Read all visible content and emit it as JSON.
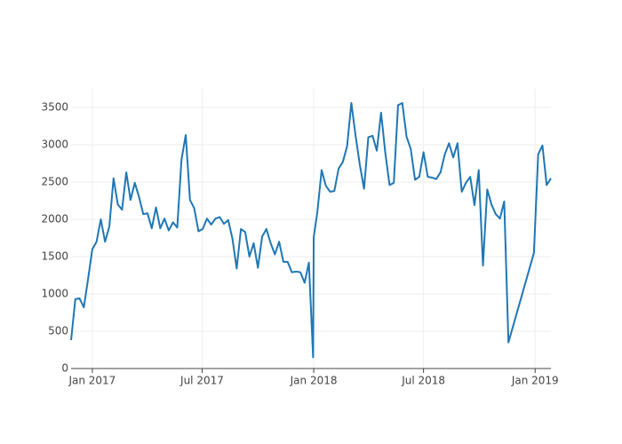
{
  "chart_data": {
    "type": "line",
    "x": [
      "2016-11-27",
      "2016-12-04",
      "2016-12-11",
      "2016-12-18",
      "2016-12-25",
      "2017-01-01",
      "2017-01-08",
      "2017-01-15",
      "2017-01-22",
      "2017-01-29",
      "2017-02-05",
      "2017-02-12",
      "2017-02-19",
      "2017-02-26",
      "2017-03-05",
      "2017-03-12",
      "2017-03-19",
      "2017-03-26",
      "2017-04-02",
      "2017-04-09",
      "2017-04-16",
      "2017-04-23",
      "2017-04-30",
      "2017-05-07",
      "2017-05-14",
      "2017-05-21",
      "2017-05-28",
      "2017-06-04",
      "2017-06-11",
      "2017-06-18",
      "2017-06-25",
      "2017-07-02",
      "2017-07-09",
      "2017-07-16",
      "2017-07-23",
      "2017-07-30",
      "2017-08-06",
      "2017-08-13",
      "2017-08-20",
      "2017-08-27",
      "2017-09-03",
      "2017-09-10",
      "2017-09-17",
      "2017-09-24",
      "2017-10-01",
      "2017-10-08",
      "2017-10-15",
      "2017-10-22",
      "2017-10-29",
      "2017-11-05",
      "2017-11-12",
      "2017-11-19",
      "2017-11-26",
      "2017-12-03",
      "2017-12-10",
      "2017-12-17",
      "2017-12-24",
      "2017-12-31",
      "2018-01-01",
      "2018-01-07",
      "2018-01-14",
      "2018-01-21",
      "2018-01-28",
      "2018-02-04",
      "2018-02-11",
      "2018-02-18",
      "2018-02-25",
      "2018-03-04",
      "2018-03-11",
      "2018-03-18",
      "2018-03-25",
      "2018-04-01",
      "2018-04-08",
      "2018-04-15",
      "2018-04-22",
      "2018-04-29",
      "2018-05-06",
      "2018-05-13",
      "2018-05-20",
      "2018-05-27",
      "2018-06-03",
      "2018-06-10",
      "2018-06-17",
      "2018-06-24",
      "2018-07-01",
      "2018-07-08",
      "2018-07-15",
      "2018-07-22",
      "2018-07-29",
      "2018-08-05",
      "2018-08-12",
      "2018-08-19",
      "2018-08-26",
      "2018-09-02",
      "2018-09-09",
      "2018-09-16",
      "2018-09-23",
      "2018-09-30",
      "2018-10-07",
      "2018-10-14",
      "2018-10-21",
      "2018-10-28",
      "2018-11-04",
      "2018-11-11",
      "2018-11-18",
      "2018-12-30",
      "2019-01-06",
      "2019-01-13",
      "2019-01-20",
      "2019-01-27"
    ],
    "series": [
      {
        "color": "#1f77b4",
        "values": [
          380,
          930,
          940,
          820,
          1200,
          1600,
          1700,
          2000,
          1700,
          1900,
          2550,
          2200,
          2130,
          2630,
          2260,
          2490,
          2300,
          2070,
          2080,
          1880,
          2160,
          1880,
          2010,
          1850,
          1960,
          1890,
          2800,
          3130,
          2260,
          2150,
          1840,
          1870,
          2010,
          1930,
          2010,
          2030,
          1940,
          1990,
          1740,
          1340,
          1870,
          1830,
          1500,
          1680,
          1350,
          1770,
          1870,
          1680,
          1530,
          1700,
          1430,
          1430,
          1290,
          1300,
          1290,
          1150,
          1420,
          150,
          1760,
          2100,
          2660,
          2450,
          2370,
          2380,
          2680,
          2770,
          2980,
          3560,
          3120,
          2730,
          2410,
          3100,
          3120,
          2920,
          3430,
          2890,
          2460,
          2490,
          3530,
          3560,
          3110,
          2940,
          2530,
          2570,
          2900,
          2570,
          2560,
          2540,
          2630,
          2870,
          3020,
          2830,
          3020,
          2370,
          2490,
          2570,
          2190,
          2660,
          1380,
          2400,
          2200,
          2070,
          2010,
          2240,
          350,
          1550,
          2870,
          2990,
          2460,
          2550
        ]
      }
    ],
    "xlim": [
      "2016-11-27",
      "2019-01-27"
    ],
    "xticks": [
      {
        "value": "2017-01-01",
        "label": "Jan 2017"
      },
      {
        "value": "2017-07-01",
        "label": "Jul 2017"
      },
      {
        "value": "2018-01-01",
        "label": "Jan 2018"
      },
      {
        "value": "2018-07-01",
        "label": "Jul 2018"
      },
      {
        "value": "2019-01-01",
        "label": "Jan 2019"
      }
    ],
    "ylim": [
      0,
      3750
    ],
    "yticks": [
      0,
      500,
      1000,
      1500,
      2000,
      2500,
      3000,
      3500
    ],
    "grid": true
  }
}
